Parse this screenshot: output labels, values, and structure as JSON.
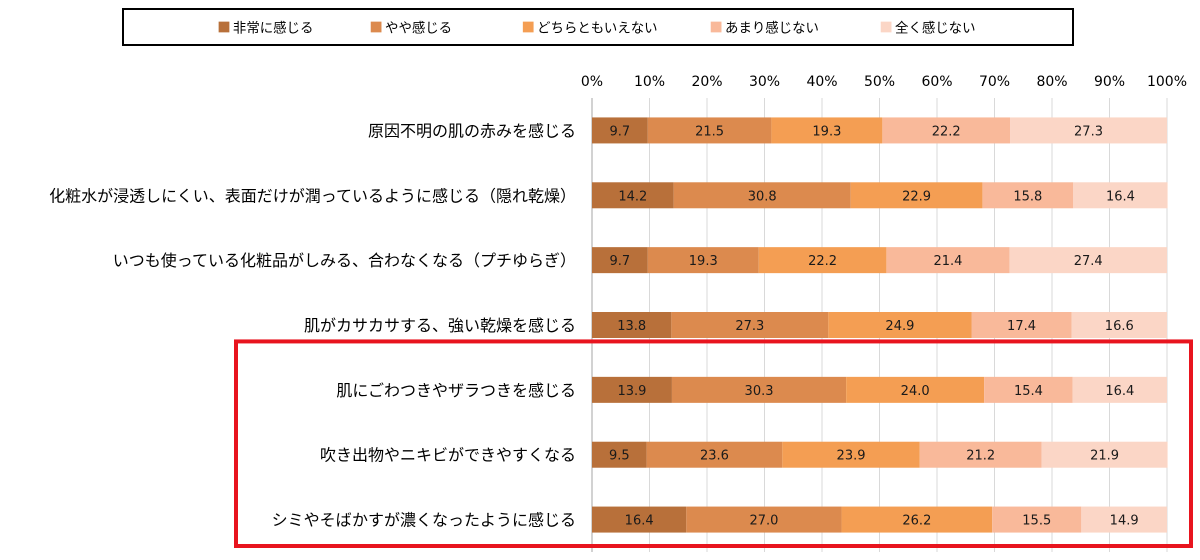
{
  "chart_data": {
    "type": "bar",
    "orientation": "horizontal",
    "stacked": true,
    "percent": true,
    "xlim": [
      0,
      100
    ],
    "x_ticks": [
      "0%",
      "10%",
      "20%",
      "30%",
      "40%",
      "50%",
      "60%",
      "70%",
      "80%",
      "90%",
      "100%"
    ],
    "legend_position": "top",
    "grid": true,
    "categories": [
      "原因不明の肌の赤みを感じる",
      "化粧水が浸透しにくい、表面だけが潤っているように感じる（隠れ乾燥）",
      "いつも使っている化粧品がしみる、合わなくなる（プチゆらぎ）",
      "肌がカサカサする、強い乾燥を感じる",
      "肌にごわつきやザラつきを感じる",
      "吹き出物やニキビができやすくなる",
      "シミやそばかすが濃くなったように感じる"
    ],
    "series": [
      {
        "name": "非常に感じる",
        "color": "#B8703A",
        "values": [
          9.7,
          14.2,
          9.7,
          13.8,
          13.9,
          9.5,
          16.4
        ]
      },
      {
        "name": "やや感じる",
        "color": "#DC8A4E",
        "values": [
          21.5,
          30.8,
          19.3,
          27.3,
          30.3,
          23.6,
          27.0
        ]
      },
      {
        "name": "どちらともいえない",
        "color": "#F49E53",
        "values": [
          19.3,
          22.9,
          22.2,
          24.9,
          24.0,
          23.9,
          26.2
        ]
      },
      {
        "name": "あまり感じない",
        "color": "#F9B99A",
        "values": [
          22.2,
          15.8,
          21.4,
          17.4,
          15.4,
          21.2,
          15.5
        ]
      },
      {
        "name": "全く感じない",
        "color": "#FBD6C6",
        "values": [
          27.3,
          16.4,
          27.4,
          16.6,
          16.4,
          21.9,
          14.9
        ]
      }
    ],
    "highlight": {
      "categories": [
        4,
        5,
        6
      ],
      "color": "#E8141E"
    }
  }
}
